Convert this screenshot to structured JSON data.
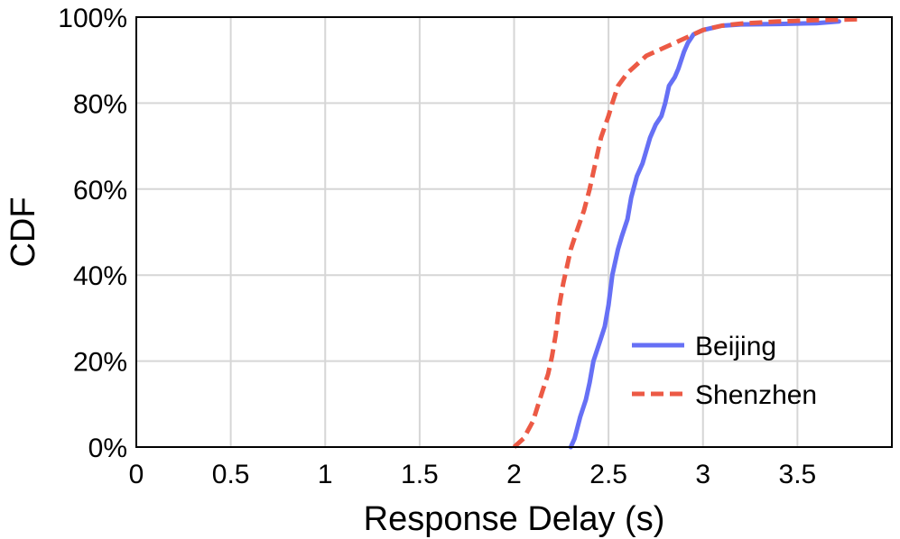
{
  "chart_data": {
    "type": "line",
    "xlabel": "Response Delay (s)",
    "ylabel": "CDF",
    "xlim": [
      0,
      4.0
    ],
    "ylim": [
      0,
      100
    ],
    "x_ticks": [
      0,
      0.5,
      1,
      1.5,
      2,
      2.5,
      3,
      3.5
    ],
    "x_tick_labels": [
      "0",
      "0.5",
      "1",
      "1.5",
      "2",
      "2.5",
      "3",
      "3.5"
    ],
    "y_ticks": [
      0,
      20,
      40,
      60,
      80,
      100
    ],
    "y_tick_labels": [
      "0%",
      "20%",
      "40%",
      "60%",
      "80%",
      "100%"
    ],
    "grid": true,
    "legend_position": "bottom-right",
    "series": [
      {
        "name": "Beijing",
        "color": "#6670f5",
        "dash": "solid",
        "x": [
          2.3,
          2.32,
          2.35,
          2.38,
          2.4,
          2.42,
          2.45,
          2.48,
          2.5,
          2.52,
          2.55,
          2.57,
          2.6,
          2.62,
          2.65,
          2.68,
          2.7,
          2.72,
          2.75,
          2.78,
          2.8,
          2.82,
          2.85,
          2.87,
          2.9,
          2.92,
          2.95,
          3.0,
          3.05,
          3.1,
          3.2,
          3.4,
          3.6,
          3.72
        ],
        "y": [
          0,
          2,
          7,
          11,
          15,
          20,
          24,
          28,
          33,
          40,
          46,
          49,
          53,
          58,
          63,
          66,
          69,
          72,
          75,
          77,
          80,
          84,
          86,
          88,
          92,
          94,
          96,
          97,
          97.5,
          98,
          98.3,
          98.4,
          98.6,
          99
        ]
      },
      {
        "name": "Shenzhen",
        "color": "#ec5a45",
        "dash": "dashed",
        "x": [
          2.0,
          2.05,
          2.1,
          2.15,
          2.18,
          2.2,
          2.22,
          2.24,
          2.26,
          2.28,
          2.3,
          2.33,
          2.37,
          2.4,
          2.43,
          2.46,
          2.5,
          2.52,
          2.55,
          2.6,
          2.65,
          2.7,
          2.8,
          2.9,
          3.0,
          3.1,
          3.2,
          3.4,
          3.6,
          3.82
        ],
        "y": [
          0,
          2,
          6,
          13,
          17,
          21,
          26,
          33,
          38,
          42,
          46,
          50,
          55,
          60,
          66,
          72,
          77,
          80,
          84,
          87,
          89,
          91,
          93,
          95,
          97,
          98,
          98.5,
          99,
          99.3,
          99.5
        ]
      }
    ]
  }
}
